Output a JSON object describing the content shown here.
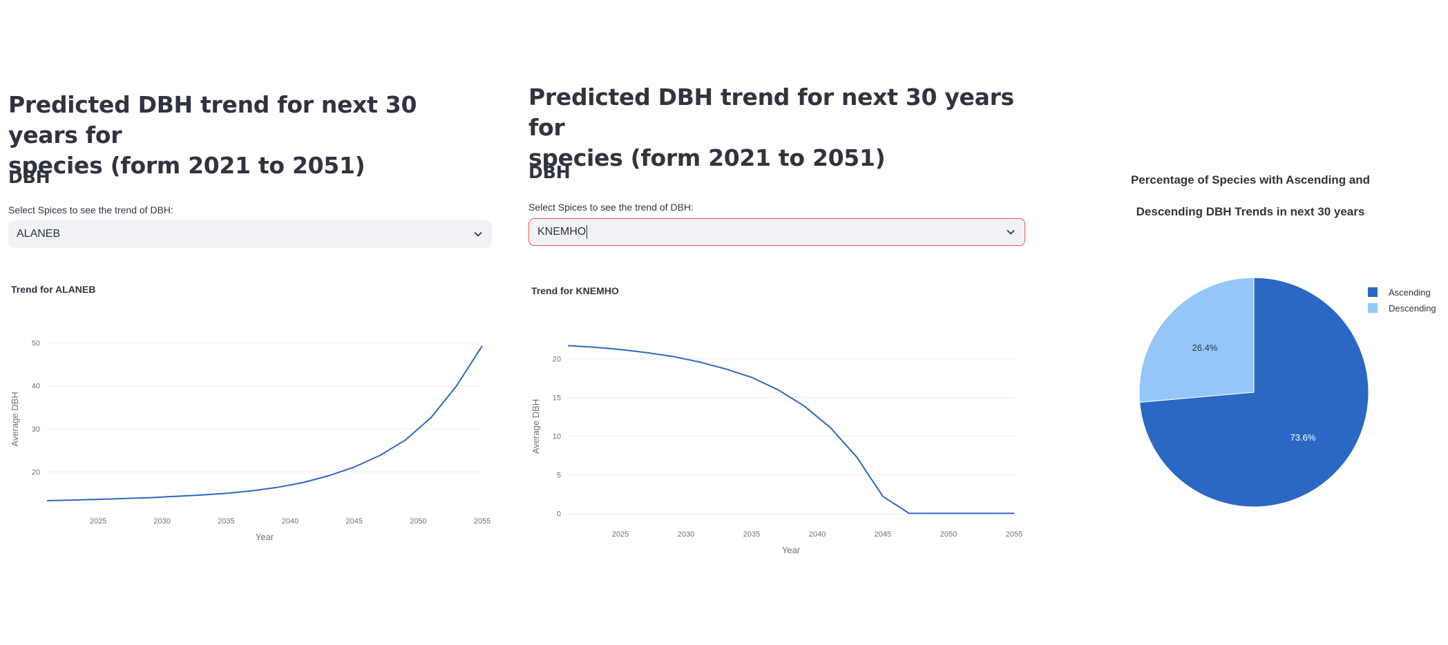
{
  "left": {
    "title_line1": "Predicted DBH trend for next 30 years for",
    "title_line2": "species (form 2021 to 2051)",
    "subheader": "DBH",
    "select_label": "Select Spices to see the trend of DBH:",
    "select_value": "ALANEB",
    "chart_title": "Trend for ALANEB"
  },
  "middle": {
    "title_line1": "Predicted DBH trend for next 30 years for",
    "title_line2": "species (form 2021 to 2051)",
    "subheader": "DBH",
    "select_label": "Select Spices to see the trend of DBH:",
    "select_value": "KNEMHO",
    "chart_title": "Trend for KNEMHO"
  },
  "right": {
    "title_line1": "Percentage of Species with Ascending and",
    "title_line2": "Descending DBH Trends in next 30 years"
  },
  "icons": {
    "dropdown": "chevron-down-icon"
  },
  "colors": {
    "line": "#2a68c3",
    "asc": "#2a68c3",
    "desc": "#94c7f7",
    "focus_border": "#ff4b4b",
    "grid": "#e9ebee",
    "axis_text": "#6d7080"
  },
  "chart_data": [
    {
      "type": "line",
      "title": "Trend for ALANEB",
      "xlabel": "Year",
      "ylabel": "Average DBH",
      "xlim": [
        2021,
        2055
      ],
      "ylim": [
        12.5,
        52
      ],
      "xticks": [
        2025,
        2030,
        2035,
        2040,
        2045,
        2050,
        2055
      ],
      "yticks": [
        20,
        30,
        40,
        50
      ],
      "x": [
        2021,
        2023,
        2025,
        2027,
        2029,
        2031,
        2033,
        2035,
        2037,
        2039,
        2041,
        2043,
        2045,
        2047,
        2049,
        2051,
        2053,
        2055
      ],
      "y": [
        13.3,
        13.45,
        13.6,
        13.8,
        14.0,
        14.3,
        14.6,
        15.0,
        15.6,
        16.4,
        17.5,
        19.1,
        21.1,
        23.8,
        27.4,
        32.6,
        40.0,
        49.3
      ]
    },
    {
      "type": "line",
      "title": "Trend for KNEMHO",
      "xlabel": "Year",
      "ylabel": "Average DBH",
      "xlim": [
        2021,
        2055
      ],
      "ylim": [
        -0.5,
        23
      ],
      "xticks": [
        2025,
        2030,
        2035,
        2040,
        2045,
        2050,
        2055
      ],
      "yticks": [
        0,
        5,
        10,
        15,
        20
      ],
      "x": [
        2021,
        2023,
        2025,
        2027,
        2029,
        2031,
        2033,
        2035,
        2037,
        2039,
        2041,
        2043,
        2045,
        2047,
        2049,
        2051,
        2053,
        2055
      ],
      "y": [
        21.7,
        21.5,
        21.2,
        20.8,
        20.3,
        19.6,
        18.7,
        17.6,
        16.0,
        13.9,
        11.1,
        7.3,
        2.2,
        0,
        0,
        0,
        0,
        0
      ]
    },
    {
      "type": "pie",
      "title": "Percentage of Species with Ascending and Descending DBH Trends in next 30 years",
      "labels": [
        "Ascending",
        "Descending"
      ],
      "values": [
        73.6,
        26.4
      ],
      "value_labels": [
        "73.6%",
        "26.4%"
      ],
      "legend": "top-right"
    }
  ]
}
